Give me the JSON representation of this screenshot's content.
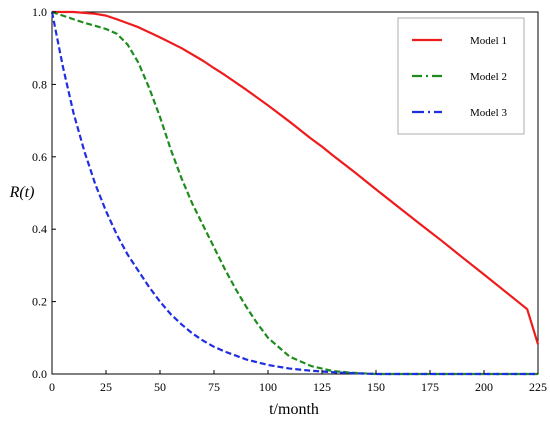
{
  "chart_data": {
    "type": "line",
    "title": "",
    "xlabel": "t/month",
    "ylabel": "R(t)",
    "xlim": [
      0,
      225
    ],
    "ylim": [
      0,
      1.0
    ],
    "xticks": [
      0,
      25,
      50,
      75,
      100,
      125,
      150,
      175,
      200,
      225
    ],
    "yticks": [
      0.0,
      0.2,
      0.4,
      0.6,
      0.8,
      1.0
    ],
    "grid": false,
    "legend_position": "top-right",
    "series": [
      {
        "name": "Model  1",
        "color": "#ee1c1c",
        "style": "solid",
        "x": [
          0,
          10,
          20,
          25,
          30,
          40,
          50,
          60,
          70,
          75,
          80,
          90,
          100,
          110,
          120,
          125,
          130,
          140,
          150,
          160,
          170,
          175,
          180,
          190,
          200,
          210,
          220,
          225
        ],
        "values": [
          1.0,
          1.0,
          0.995,
          0.99,
          0.98,
          0.958,
          0.93,
          0.9,
          0.865,
          0.845,
          0.826,
          0.785,
          0.742,
          0.697,
          0.65,
          0.628,
          0.604,
          0.558,
          0.51,
          0.463,
          0.416,
          0.393,
          0.37,
          0.322,
          0.275,
          0.227,
          0.179,
          0.082
        ]
      },
      {
        "name": "Model  2",
        "color": "#1f8c1f",
        "style": "dashed",
        "x": [
          0,
          5,
          10,
          15,
          20,
          25,
          30,
          35,
          40,
          45,
          50,
          55,
          60,
          65,
          70,
          75,
          80,
          85,
          90,
          95,
          100,
          110,
          120,
          130,
          140,
          150,
          175,
          200,
          225
        ],
        "values": [
          1.0,
          0.99,
          0.98,
          0.97,
          0.962,
          0.953,
          0.94,
          0.91,
          0.86,
          0.79,
          0.71,
          0.62,
          0.54,
          0.47,
          0.41,
          0.35,
          0.29,
          0.235,
          0.185,
          0.14,
          0.1,
          0.048,
          0.022,
          0.008,
          0.003,
          0.0,
          0.0,
          0.0,
          0.0
        ]
      },
      {
        "name": "Model  3",
        "color": "#1f2fe0",
        "style": "dashed",
        "x": [
          0,
          5,
          10,
          15,
          20,
          25,
          30,
          35,
          40,
          45,
          50,
          55,
          60,
          65,
          70,
          75,
          80,
          90,
          100,
          110,
          120,
          130,
          140,
          150,
          175,
          200,
          225
        ],
        "values": [
          1.0,
          0.85,
          0.72,
          0.615,
          0.525,
          0.45,
          0.385,
          0.33,
          0.285,
          0.24,
          0.2,
          0.165,
          0.137,
          0.112,
          0.092,
          0.075,
          0.062,
          0.04,
          0.025,
          0.015,
          0.009,
          0.005,
          0.002,
          0.0,
          0.0,
          0.0,
          0.0
        ]
      }
    ]
  }
}
